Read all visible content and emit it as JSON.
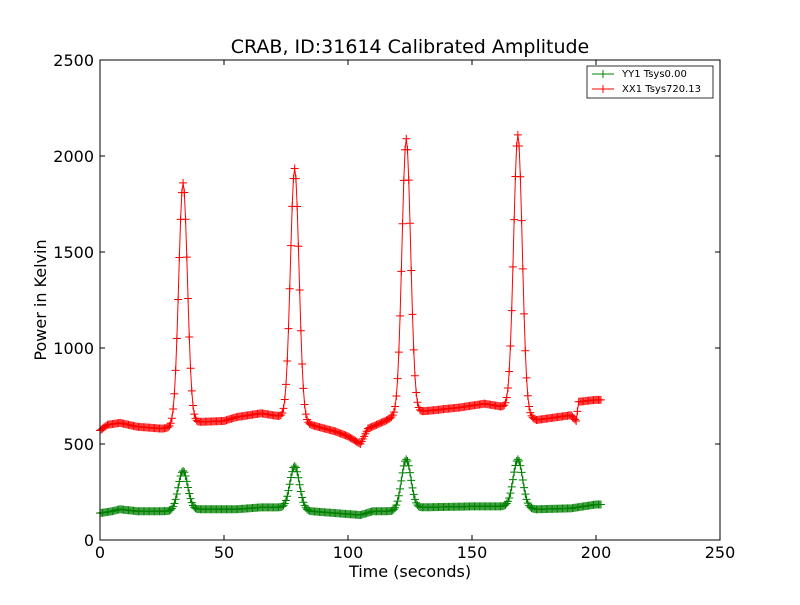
{
  "chart_data": {
    "type": "line",
    "title": "CRAB, ID:31614 Calibrated Amplitude",
    "xlabel": "Time (seconds)",
    "ylabel": "Power in Kelvin",
    "xlim": [
      0,
      250
    ],
    "ylim": [
      0,
      2500
    ],
    "xticks": [
      0,
      50,
      100,
      150,
      200,
      250
    ],
    "yticks": [
      0,
      500,
      1000,
      1500,
      2000,
      2500
    ],
    "xtick_labels": [
      "0",
      "50",
      "100",
      "150",
      "200",
      "250"
    ],
    "ytick_labels": [
      "0",
      "500",
      "1000",
      "1500",
      "2000",
      "2500"
    ],
    "grid": false,
    "legend_position": "top-right",
    "marker": "+",
    "series": [
      {
        "name": "YY1 Tsys0.00",
        "color": "#008000",
        "baseline": [
          [
            0,
            140
          ],
          [
            5,
            150
          ],
          [
            8,
            160
          ],
          [
            15,
            150
          ],
          [
            25,
            150
          ],
          [
            28,
            150
          ],
          [
            40,
            160
          ],
          [
            55,
            160
          ],
          [
            65,
            170
          ],
          [
            72,
            170
          ],
          [
            85,
            150
          ],
          [
            95,
            140
          ],
          [
            100,
            135
          ],
          [
            105,
            130
          ],
          [
            110,
            150
          ],
          [
            118,
            150
          ],
          [
            130,
            170
          ],
          [
            150,
            175
          ],
          [
            160,
            175
          ],
          [
            164,
            175
          ],
          [
            176,
            160
          ],
          [
            190,
            165
          ],
          [
            200,
            185
          ],
          [
            202,
            185
          ]
        ],
        "peaks": [
          [
            33.5,
            360,
            1.9
          ],
          [
            78.5,
            385,
            1.9
          ],
          [
            123.5,
            420,
            1.9
          ],
          [
            168.5,
            420,
            1.9
          ]
        ]
      },
      {
        "name": "XX1 Tsys720.13",
        "color": "#ff0000",
        "baseline": [
          [
            0,
            570
          ],
          [
            3,
            600
          ],
          [
            8,
            610
          ],
          [
            15,
            590
          ],
          [
            25,
            580
          ],
          [
            28,
            585
          ],
          [
            40,
            615
          ],
          [
            50,
            620
          ],
          [
            55,
            640
          ],
          [
            65,
            660
          ],
          [
            72,
            645
          ],
          [
            85,
            600
          ],
          [
            95,
            565
          ],
          [
            100,
            540
          ],
          [
            105,
            500
          ],
          [
            108,
            580
          ],
          [
            115,
            620
          ],
          [
            118,
            640
          ],
          [
            130,
            670
          ],
          [
            145,
            690
          ],
          [
            155,
            710
          ],
          [
            164,
            690
          ],
          [
            176,
            625
          ],
          [
            190,
            650
          ],
          [
            192,
            620
          ],
          [
            193,
            720
          ],
          [
            200,
            730
          ],
          [
            202,
            730
          ]
        ],
        "peaks": [
          [
            33.5,
            1860,
            1.75
          ],
          [
            78.5,
            1935,
            1.75
          ],
          [
            123.5,
            2090,
            1.75
          ],
          [
            168.5,
            2110,
            1.75
          ]
        ]
      }
    ]
  }
}
